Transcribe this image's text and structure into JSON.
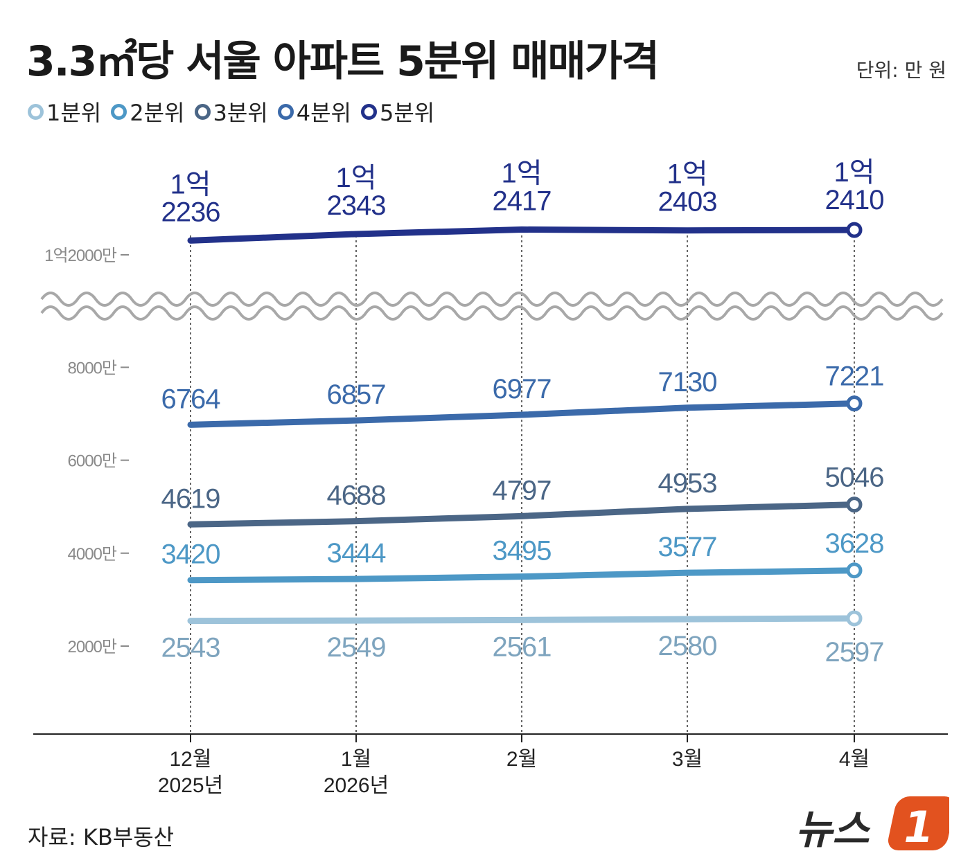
{
  "header": {
    "title": "3.3㎡당 서울 아파트 5분위 매매가격",
    "unit": "단위: 만 원"
  },
  "legend": [
    {
      "label": "1분위",
      "color": "#9dc3da"
    },
    {
      "label": "2분위",
      "color": "#4d98c6"
    },
    {
      "label": "3분위",
      "color": "#4b6686"
    },
    {
      "label": "4분위",
      "color": "#3b6aaa"
    },
    {
      "label": "5분위",
      "color": "#22318a"
    }
  ],
  "chart_data": {
    "type": "line",
    "title": "3.3㎡당 서울 아파트 5분위 매매가격",
    "ylabel": "단위: 만 원",
    "axis_break": true,
    "categories": [
      {
        "month": "12월",
        "year": "2025년"
      },
      {
        "month": "1월",
        "year": "2026년"
      },
      {
        "month": "2월",
        "year": ""
      },
      {
        "month": "3월",
        "year": ""
      },
      {
        "month": "4월",
        "year": ""
      }
    ],
    "yticks": [
      {
        "value": 2000,
        "label": "2000만"
      },
      {
        "value": 4000,
        "label": "4000만"
      },
      {
        "value": 6000,
        "label": "6000만"
      },
      {
        "value": 8000,
        "label": "8000만"
      },
      {
        "value": 12000,
        "label": "1억2000만"
      }
    ],
    "series": [
      {
        "name": "1분위",
        "color": "#9dc3da",
        "label_color": "#7ea4be",
        "label_pos": "below",
        "values": [
          2543,
          2549,
          2561,
          2580,
          2597
        ],
        "labels": [
          "2543",
          "2549",
          "2561",
          "2580",
          "2597"
        ]
      },
      {
        "name": "2분위",
        "color": "#4d98c6",
        "label_color": "#4d98c6",
        "label_pos": "above",
        "values": [
          3420,
          3444,
          3495,
          3577,
          3628
        ],
        "labels": [
          "3420",
          "3444",
          "3495",
          "3577",
          "3628"
        ]
      },
      {
        "name": "3분위",
        "color": "#4b6686",
        "label_color": "#4b6686",
        "label_pos": "above",
        "values": [
          4619,
          4688,
          4797,
          4953,
          5046
        ],
        "labels": [
          "4619",
          "4688",
          "4797",
          "4953",
          "5046"
        ]
      },
      {
        "name": "4분위",
        "color": "#3b6aaa",
        "label_color": "#3b6aaa",
        "label_pos": "above",
        "values": [
          6764,
          6857,
          6977,
          7130,
          7221
        ],
        "labels": [
          "6764",
          "6857",
          "6977",
          "7130",
          "7221"
        ]
      },
      {
        "name": "5분위",
        "color": "#22318a",
        "label_color": "#22318a",
        "label_pos": "above",
        "values": [
          12236,
          12343,
          12417,
          12403,
          12410
        ],
        "labels": [
          [
            "1억",
            "2236"
          ],
          [
            "1억",
            "2343"
          ],
          [
            "1억",
            "2417"
          ],
          [
            "1억",
            "2403"
          ],
          [
            "1억",
            "2410"
          ]
        ]
      }
    ]
  },
  "footer": {
    "source": "자료: KB부동산",
    "logo_text": "뉴스",
    "logo_mark": "1",
    "logo_accent": "#e2521f"
  }
}
